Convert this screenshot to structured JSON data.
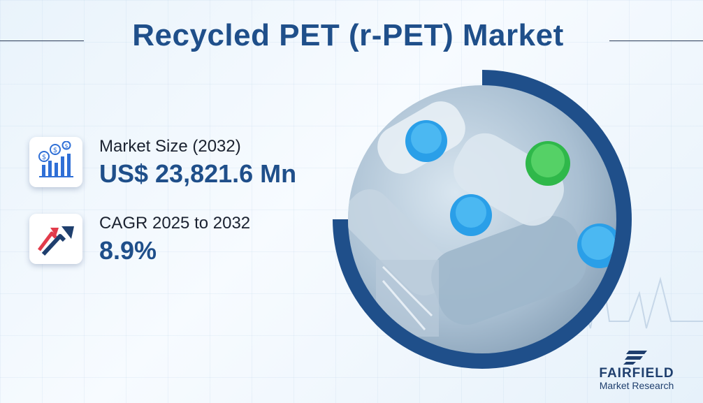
{
  "title": "Recycled PET (r-PET) Market",
  "stats": [
    {
      "label": "Market Size (2032)",
      "value": "US$ 23,821.6 Mn",
      "icon": "money-growth-chart-icon"
    },
    {
      "label": "CAGR 2025 to 2032",
      "value": "8.9%",
      "icon": "trend-arrows-icon"
    }
  ],
  "image": {
    "subject": "plastic-bottles-photo"
  },
  "brand": {
    "name": "FAIRFIELD",
    "tagline": "Market Research"
  },
  "colors": {
    "primary": "#1f4f8a",
    "ring": "#1f4f8a",
    "text": "#1b2230",
    "arrow_red": "#e23b4b"
  }
}
